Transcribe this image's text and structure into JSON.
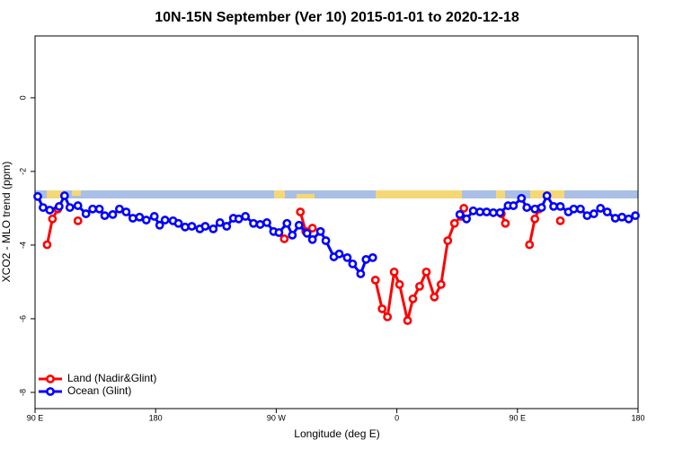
{
  "chart_data": {
    "type": "line",
    "title": "10N-15N September (Ver 10)   2015-01-01 to 2020-12-18",
    "x_label": "Longitude (deg E)",
    "y_label": "XCO2 - MLO trend (ppm)",
    "xlim": [
      90,
      540
    ],
    "ylim": [
      1.68,
      -8.44
    ],
    "xticks": [
      {
        "value": 90,
        "label": "90 E"
      },
      {
        "value": 180,
        "label": "180"
      },
      {
        "value": 270,
        "label": "90 W"
      },
      {
        "value": 360,
        "label": "0"
      },
      {
        "value": 450,
        "label": "90 E"
      },
      {
        "value": 540,
        "label": "180"
      }
    ],
    "yticks": [
      0,
      -2,
      -4,
      -6,
      -8
    ],
    "legend": "bottom-left",
    "series": [
      {
        "name": "Land (Nadir&Glint)",
        "color": "#ff0000",
        "x": [
          99,
          103,
          107,
          null,
          122,
          null,
          276,
          null,
          288,
          292,
          297,
          null,
          344,
          349,
          353,
          358,
          362,
          368,
          372,
          377,
          382,
          388,
          393,
          398,
          403,
          408,
          410,
          null,
          438,
          441,
          null,
          459,
          463,
          466,
          null,
          482
        ],
        "values": [
          -3.99,
          -3.29,
          -3.02,
          null,
          -3.34,
          null,
          -3.83,
          null,
          -3.1,
          -3.63,
          -3.54,
          null,
          -4.95,
          -5.73,
          -5.95,
          -4.73,
          -5.07,
          -6.05,
          -5.46,
          -5.12,
          -4.73,
          -5.41,
          -5.07,
          -3.88,
          -3.41,
          -3.22,
          -3.0,
          null,
          -3.15,
          -3.41,
          null,
          -3.99,
          -3.29,
          -3.02,
          null,
          -3.34
        ]
      },
      {
        "name": "Ocean (Glint)",
        "color": "#0000ff",
        "x": [
          92,
          96,
          101,
          108,
          112,
          116,
          122,
          128,
          133,
          138,
          142,
          148,
          153,
          158,
          163,
          168,
          173,
          179,
          183,
          187,
          193,
          197,
          202,
          207,
          213,
          217,
          223,
          228,
          233,
          238,
          242,
          247,
          253,
          258,
          263,
          268,
          272,
          278,
          282,
          287,
          293,
          297,
          303,
          307,
          313,
          317,
          323,
          327,
          333,
          337,
          342,
          null,
          407,
          412,
          417,
          422,
          427,
          432,
          437,
          443,
          447,
          453,
          457,
          463,
          468,
          472,
          477,
          482,
          488,
          492,
          497,
          502,
          507,
          512,
          517,
          523,
          528,
          533,
          538
        ],
        "values": [
          -2.68,
          -2.98,
          -3.05,
          -2.95,
          -2.66,
          -2.98,
          -2.93,
          -3.15,
          -3.02,
          -3.02,
          -3.2,
          -3.17,
          -3.02,
          -3.1,
          -3.27,
          -3.24,
          -3.32,
          -3.22,
          -3.46,
          -3.32,
          -3.34,
          -3.41,
          -3.51,
          -3.49,
          -3.56,
          -3.49,
          -3.56,
          -3.39,
          -3.49,
          -3.27,
          -3.29,
          -3.22,
          -3.41,
          -3.44,
          -3.39,
          -3.63,
          -3.66,
          -3.41,
          -3.73,
          -3.46,
          -3.68,
          -3.85,
          -3.63,
          -3.88,
          -4.32,
          -4.24,
          -4.34,
          -4.51,
          -4.78,
          -4.39,
          -4.34,
          null,
          -3.17,
          -3.29,
          -3.07,
          -3.1,
          -3.1,
          -3.12,
          -3.12,
          -2.93,
          -2.93,
          -2.73,
          -2.98,
          -3.02,
          -2.98,
          -2.66,
          -2.95,
          -2.95,
          -3.1,
          -3.02,
          -3.02,
          -3.2,
          -3.15,
          -3.0,
          -3.1,
          -3.27,
          -3.24,
          -3.29,
          -3.2
        ]
      }
    ]
  }
}
